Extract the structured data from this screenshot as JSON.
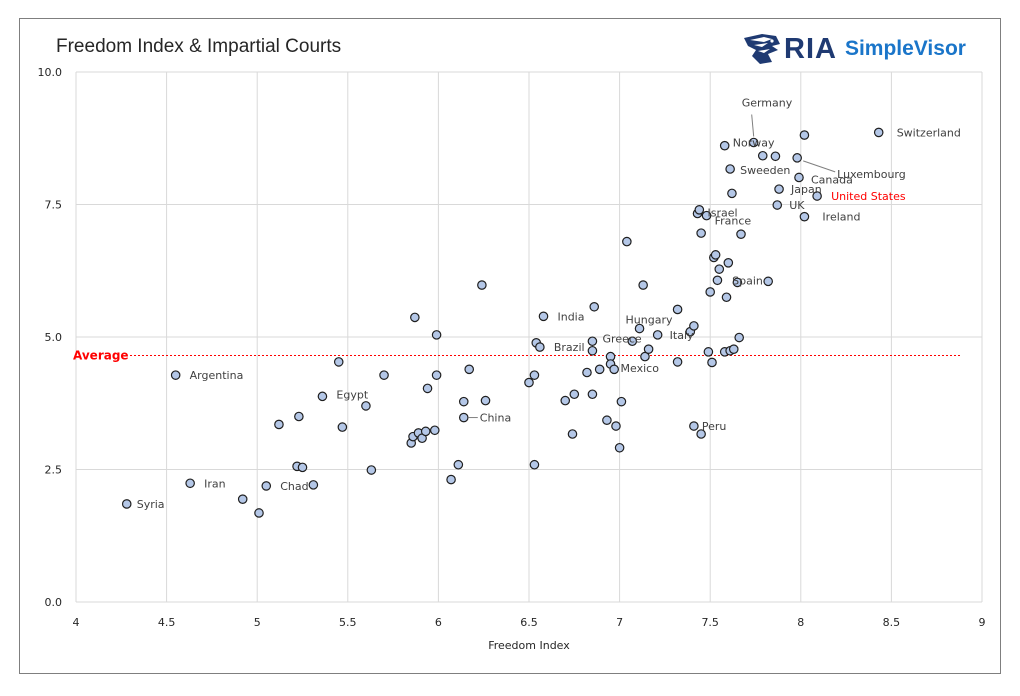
{
  "chart_data": {
    "type": "scatter",
    "title": "Freedom Index & Impartial Courts",
    "xlabel": "Freedom Index",
    "ylabel": "",
    "xlim": [
      4,
      9
    ],
    "ylim": [
      0,
      10
    ],
    "x_ticks": [
      "4",
      "4.5",
      "5",
      "5.5",
      "6",
      "6.5",
      "7",
      "7.5",
      "8",
      "8.5",
      "9"
    ],
    "y_ticks": [
      "0.0",
      "2.5",
      "5.0",
      "7.5",
      "10.0"
    ],
    "grid": true,
    "average": {
      "label": "Average",
      "value": 4.65,
      "color": "#ff0000"
    },
    "marker_fill": "#b4c7e7",
    "marker_stroke": "#1f1f1f",
    "points": [
      {
        "x": 4.28,
        "y": 1.85,
        "label": "Syria"
      },
      {
        "x": 4.55,
        "y": 4.28,
        "label": "Argentina"
      },
      {
        "x": 4.63,
        "y": 2.24,
        "label": "Iran"
      },
      {
        "x": 4.92,
        "y": 1.94
      },
      {
        "x": 5.01,
        "y": 1.68
      },
      {
        "x": 5.05,
        "y": 2.19,
        "label": "Chad"
      },
      {
        "x": 5.12,
        "y": 3.35
      },
      {
        "x": 5.22,
        "y": 2.56
      },
      {
        "x": 5.23,
        "y": 3.5
      },
      {
        "x": 5.25,
        "y": 2.54
      },
      {
        "x": 5.31,
        "y": 2.21
      },
      {
        "x": 5.36,
        "y": 3.88,
        "label": "Egypt"
      },
      {
        "x": 5.45,
        "y": 4.53
      },
      {
        "x": 5.47,
        "y": 3.3
      },
      {
        "x": 5.6,
        "y": 3.7
      },
      {
        "x": 5.63,
        "y": 2.49
      },
      {
        "x": 5.7,
        "y": 4.28
      },
      {
        "x": 5.85,
        "y": 3.0
      },
      {
        "x": 5.86,
        "y": 3.12
      },
      {
        "x": 5.87,
        "y": 5.37
      },
      {
        "x": 5.89,
        "y": 3.19
      },
      {
        "x": 5.91,
        "y": 3.09
      },
      {
        "x": 5.93,
        "y": 3.22
      },
      {
        "x": 5.94,
        "y": 4.03
      },
      {
        "x": 5.98,
        "y": 3.24
      },
      {
        "x": 5.99,
        "y": 4.28
      },
      {
        "x": 5.99,
        "y": 5.04
      },
      {
        "x": 6.07,
        "y": 2.31
      },
      {
        "x": 6.11,
        "y": 2.59
      },
      {
        "x": 6.14,
        "y": 3.78
      },
      {
        "x": 6.14,
        "y": 3.48,
        "label": "China"
      },
      {
        "x": 6.17,
        "y": 4.39
      },
      {
        "x": 6.24,
        "y": 5.98
      },
      {
        "x": 6.26,
        "y": 3.8
      },
      {
        "x": 6.5,
        "y": 4.14
      },
      {
        "x": 6.53,
        "y": 2.59
      },
      {
        "x": 6.53,
        "y": 4.28
      },
      {
        "x": 6.54,
        "y": 4.89
      },
      {
        "x": 6.56,
        "y": 4.81,
        "label": "Brazil"
      },
      {
        "x": 6.58,
        "y": 5.39,
        "label": "India"
      },
      {
        "x": 6.7,
        "y": 3.8
      },
      {
        "x": 6.74,
        "y": 3.17
      },
      {
        "x": 6.75,
        "y": 3.92
      },
      {
        "x": 6.82,
        "y": 4.33
      },
      {
        "x": 6.85,
        "y": 4.92
      },
      {
        "x": 6.85,
        "y": 4.74
      },
      {
        "x": 6.85,
        "y": 3.92
      },
      {
        "x": 6.86,
        "y": 5.57
      },
      {
        "x": 6.89,
        "y": 4.39
      },
      {
        "x": 6.93,
        "y": 3.43
      },
      {
        "x": 6.95,
        "y": 4.63,
        "label": "Greece"
      },
      {
        "x": 6.95,
        "y": 4.49,
        "label": "Mexico"
      },
      {
        "x": 6.97,
        "y": 4.39
      },
      {
        "x": 6.98,
        "y": 3.32
      },
      {
        "x": 7.0,
        "y": 2.91
      },
      {
        "x": 7.01,
        "y": 3.78
      },
      {
        "x": 7.04,
        "y": 6.8
      },
      {
        "x": 7.07,
        "y": 4.92
      },
      {
        "x": 7.11,
        "y": 5.16,
        "label": "Hungary"
      },
      {
        "x": 7.13,
        "y": 5.98
      },
      {
        "x": 7.14,
        "y": 4.63
      },
      {
        "x": 7.16,
        "y": 4.77
      },
      {
        "x": 7.21,
        "y": 5.04,
        "label": "Italy"
      },
      {
        "x": 7.32,
        "y": 5.52
      },
      {
        "x": 7.32,
        "y": 4.53
      },
      {
        "x": 7.39,
        "y": 5.1
      },
      {
        "x": 7.41,
        "y": 5.21
      },
      {
        "x": 7.41,
        "y": 3.32,
        "label": "Peru"
      },
      {
        "x": 7.43,
        "y": 7.33,
        "label": "Israel"
      },
      {
        "x": 7.44,
        "y": 7.4
      },
      {
        "x": 7.45,
        "y": 3.17
      },
      {
        "x": 7.45,
        "y": 6.96
      },
      {
        "x": 7.48,
        "y": 7.29,
        "label": "France"
      },
      {
        "x": 7.49,
        "y": 4.72
      },
      {
        "x": 7.5,
        "y": 5.85
      },
      {
        "x": 7.51,
        "y": 4.52
      },
      {
        "x": 7.52,
        "y": 6.5
      },
      {
        "x": 7.53,
        "y": 6.55
      },
      {
        "x": 7.54,
        "y": 6.07
      },
      {
        "x": 7.55,
        "y": 6.28
      },
      {
        "x": 7.58,
        "y": 8.61
      },
      {
        "x": 7.58,
        "y": 4.72
      },
      {
        "x": 7.59,
        "y": 5.75
      },
      {
        "x": 7.6,
        "y": 6.4
      },
      {
        "x": 7.61,
        "y": 8.17,
        "label": "Sweeden"
      },
      {
        "x": 7.61,
        "y": 4.74
      },
      {
        "x": 7.62,
        "y": 7.71
      },
      {
        "x": 7.63,
        "y": 4.77
      },
      {
        "x": 7.65,
        "y": 6.03
      },
      {
        "x": 7.66,
        "y": 4.99
      },
      {
        "x": 7.67,
        "y": 6.94
      },
      {
        "x": 7.74,
        "y": 8.67,
        "label": "Germany"
      },
      {
        "x": 7.79,
        "y": 8.42,
        "label": "Norway"
      },
      {
        "x": 7.82,
        "y": 6.05,
        "label": "Spain"
      },
      {
        "x": 7.86,
        "y": 8.41
      },
      {
        "x": 7.87,
        "y": 7.49,
        "label": "UK"
      },
      {
        "x": 7.88,
        "y": 7.79,
        "label": "Japan"
      },
      {
        "x": 7.98,
        "y": 8.38,
        "label": "Luxembourg"
      },
      {
        "x": 7.99,
        "y": 8.01,
        "label": "Canada"
      },
      {
        "x": 8.02,
        "y": 8.81
      },
      {
        "x": 8.02,
        "y": 7.27,
        "label": "Ireland"
      },
      {
        "x": 8.09,
        "y": 7.66,
        "label": "United States",
        "highlight": true
      },
      {
        "x": 8.43,
        "y": 8.86,
        "label": "Switzerland"
      }
    ]
  },
  "logo": {
    "brand": "RIA",
    "product": "SimpleVisor",
    "brand_color": "#1f3a72",
    "product_color": "#1a75c9"
  }
}
